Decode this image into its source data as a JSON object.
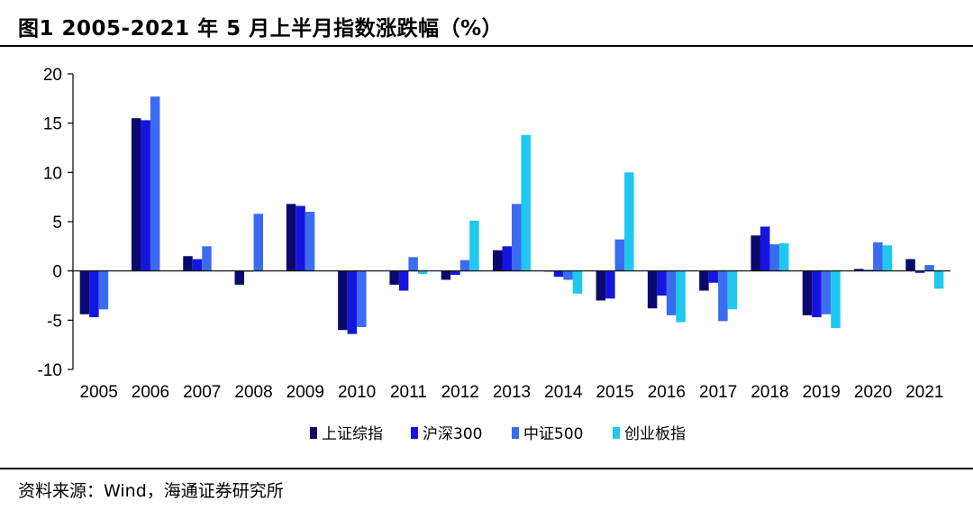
{
  "figure": {
    "title": "图1   2005-2021 年 5 月上半月指数涨跌幅（%）",
    "source": "资料来源：Wind，海通证券研究所"
  },
  "chart_data": {
    "type": "bar",
    "categories": [
      "2005",
      "2006",
      "2007",
      "2008",
      "2009",
      "2010",
      "2011",
      "2012",
      "2013",
      "2014",
      "2015",
      "2016",
      "2017",
      "2018",
      "2019",
      "2020",
      "2021"
    ],
    "series": [
      {
        "name": "上证综指",
        "color": "#0a0a6e",
        "values": [
          -4.4,
          15.5,
          1.5,
          -1.4,
          6.8,
          -6.0,
          -1.4,
          -0.9,
          2.1,
          0.0,
          -3.0,
          -3.8,
          -2.0,
          3.6,
          -4.5,
          0.2,
          1.2
        ]
      },
      {
        "name": "沪深300",
        "color": "#1515e0",
        "values": [
          -4.7,
          15.3,
          1.2,
          0.0,
          6.6,
          -6.4,
          -2.0,
          -0.4,
          2.5,
          -0.6,
          -2.8,
          -2.5,
          -1.2,
          4.5,
          -4.7,
          0.1,
          -0.2
        ]
      },
      {
        "name": "中证500",
        "color": "#3b6cf0",
        "values": [
          -3.9,
          17.7,
          2.5,
          5.8,
          6.0,
          -5.7,
          1.4,
          1.1,
          6.8,
          -0.9,
          3.2,
          -4.5,
          -5.1,
          2.7,
          -4.4,
          2.9,
          0.6
        ]
      },
      {
        "name": "创业板指",
        "color": "#1fc8f0",
        "values": [
          null,
          null,
          null,
          null,
          null,
          null,
          -0.3,
          5.1,
          13.8,
          -2.3,
          10.0,
          -5.2,
          -3.9,
          2.8,
          -5.8,
          2.6,
          -1.8
        ]
      }
    ],
    "yticks": [
      20,
      15,
      10,
      5,
      0,
      -5,
      -10
    ],
    "ylim": [
      -10,
      20
    ],
    "grid": false,
    "legend_position": "bottom"
  }
}
